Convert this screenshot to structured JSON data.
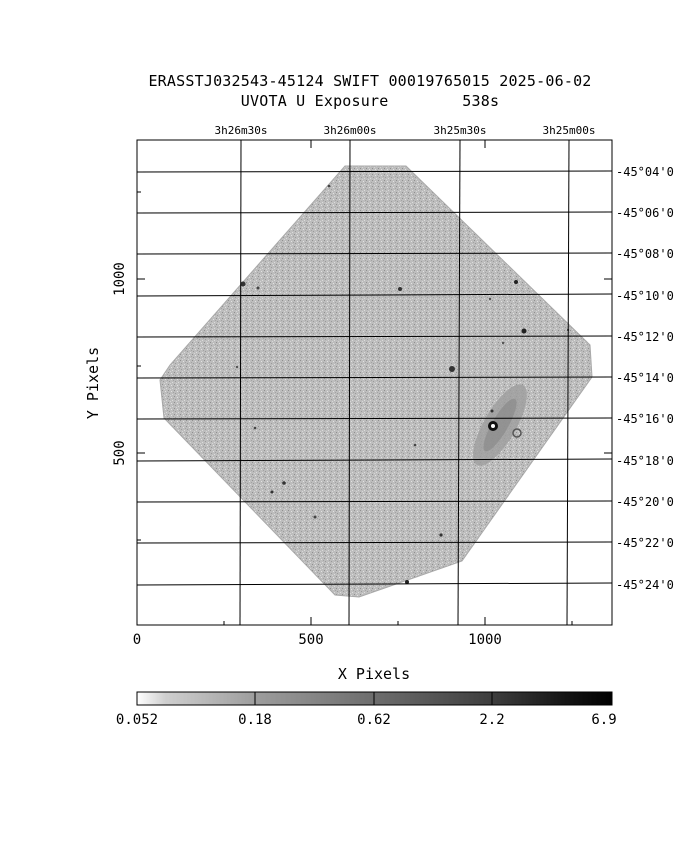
{
  "header": {
    "title_line1": "ERASSTJ032543-45124 SWIFT 00019765015 2025-06-02",
    "title_line2": "UVOTA U Exposure        538s"
  },
  "axes": {
    "xlabel": "X Pixels",
    "ylabel": "Y Pixels",
    "x_ticks": [
      "0",
      "500",
      "1000"
    ],
    "y_ticks": [
      "500",
      "1000"
    ],
    "ra_labels": [
      "3h26m30s",
      "3h26m00s",
      "3h25m30s",
      "3h25m00s"
    ],
    "dec_labels": [
      "-45°04'0",
      "-45°06'0",
      "-45°08'0",
      "-45°10'0",
      "-45°12'0",
      "-45°14'0",
      "-45°16'0",
      "-45°18'0",
      "-45°20'0",
      "-45°22'0",
      "-45°24'0"
    ]
  },
  "colorbar": {
    "labels": [
      "0.052",
      "0.18",
      "0.62",
      "2.2",
      "6.9"
    ]
  },
  "colors": {
    "background": "#ffffff",
    "grid": "#000000",
    "image_fill": "#b7b7b7"
  }
}
